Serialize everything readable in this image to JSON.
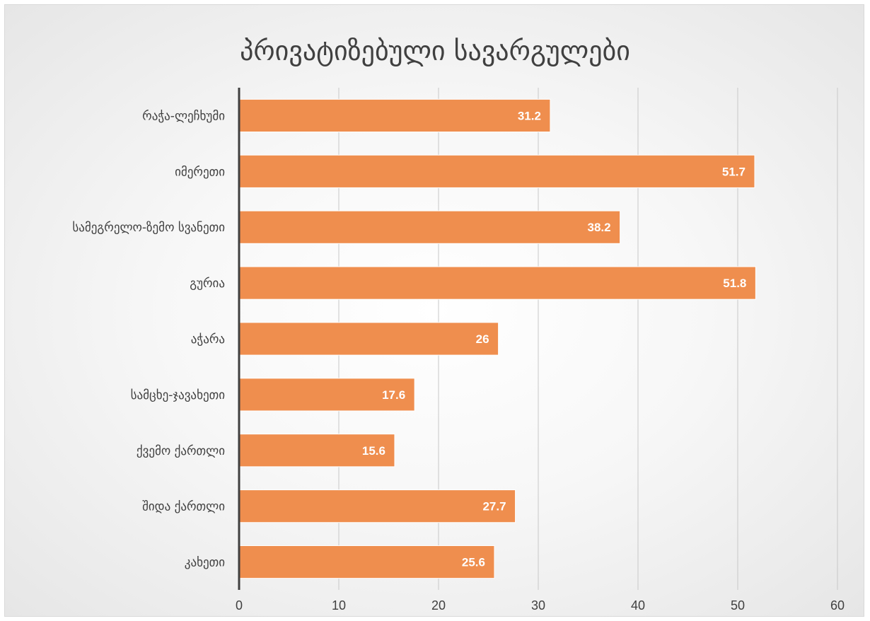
{
  "colors": {
    "bar": "#ef8e4e",
    "bar_stroke": "#ffffff",
    "grid": "#c8c8c8",
    "axis": "#404040",
    "text": "#404040",
    "data_label": "#ffffff"
  },
  "chart_data": {
    "type": "bar",
    "orientation": "horizontal",
    "title": "პრივატიზებული სავარგულები",
    "xlabel": "",
    "ylabel": "",
    "categories": [
      "რაჭა-ლეჩხუმი",
      "იმერეთი",
      "სამეგრელო-ზემო სვანეთი",
      "გურია",
      "აჭარა",
      "სამცხე-ჯავახეთი",
      "ქვემო ქართლი",
      "შიდა ქართლი",
      "კახეთი"
    ],
    "values": [
      31.2,
      51.7,
      38.2,
      51.8,
      26,
      17.6,
      15.6,
      27.7,
      25.6
    ],
    "data_labels": [
      "31.2",
      "51.7",
      "38.2",
      "51.8",
      "26",
      "17.6",
      "15.6",
      "27.7",
      "25.6"
    ],
    "xlim": [
      0,
      60
    ],
    "xticks": [
      0,
      10,
      20,
      30,
      40,
      50,
      60
    ],
    "xtick_labels": [
      "0",
      "10",
      "20",
      "30",
      "40",
      "50",
      "60"
    ],
    "grid": "vertical",
    "legend": "none"
  }
}
